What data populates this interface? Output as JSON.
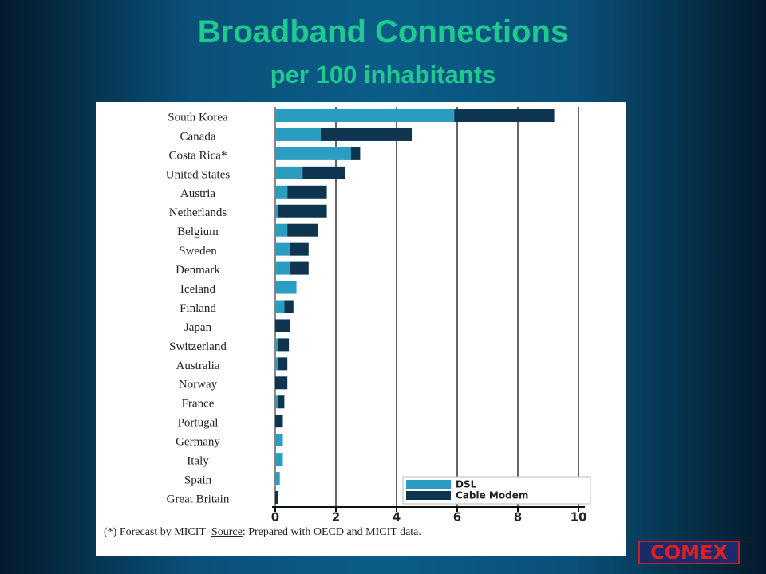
{
  "chart_data": {
    "type": "stacked-bar-horizontal",
    "title": "Broadband Connections",
    "subtitle": "per 100 inhabitants",
    "categories": [
      "South Korea",
      "Canada",
      "Costa Rica*",
      "United States",
      "Austria",
      "Netherlands",
      "Belgium",
      "Sweden",
      "Denmark",
      "Iceland",
      "Finland",
      "Japan",
      "Switzerland",
      "Australia",
      "Norway",
      "France",
      "Portugal",
      "Germany",
      "Italy",
      "Spain",
      "Great Britain"
    ],
    "series": [
      {
        "name": "DSL",
        "color": "#2a9ec0",
        "values": [
          5.9,
          1.5,
          2.5,
          0.9,
          0.4,
          0.1,
          0.4,
          0.5,
          0.5,
          0.7,
          0.3,
          0,
          0.1,
          0.1,
          0,
          0.1,
          0,
          0.25,
          0.25,
          0.15,
          0
        ]
      },
      {
        "name": "Cable Modem",
        "color": "#0e3550",
        "values": [
          3.3,
          3.0,
          0.3,
          1.4,
          1.3,
          1.6,
          1.0,
          0.6,
          0.6,
          0,
          0.3,
          0.5,
          0.35,
          0.3,
          0.4,
          0.2,
          0.25,
          0,
          0,
          0,
          0.1
        ]
      }
    ],
    "xlim": [
      0,
      10
    ],
    "xticks": [
      0,
      2,
      4,
      6,
      8,
      10
    ],
    "grid": true,
    "legend": "bottom-right",
    "footnote": "(*) Forecast by MICIT",
    "source_label": "Source",
    "source_text": ": Prepared with OECD and MICIT data."
  },
  "logo": "COMEX"
}
